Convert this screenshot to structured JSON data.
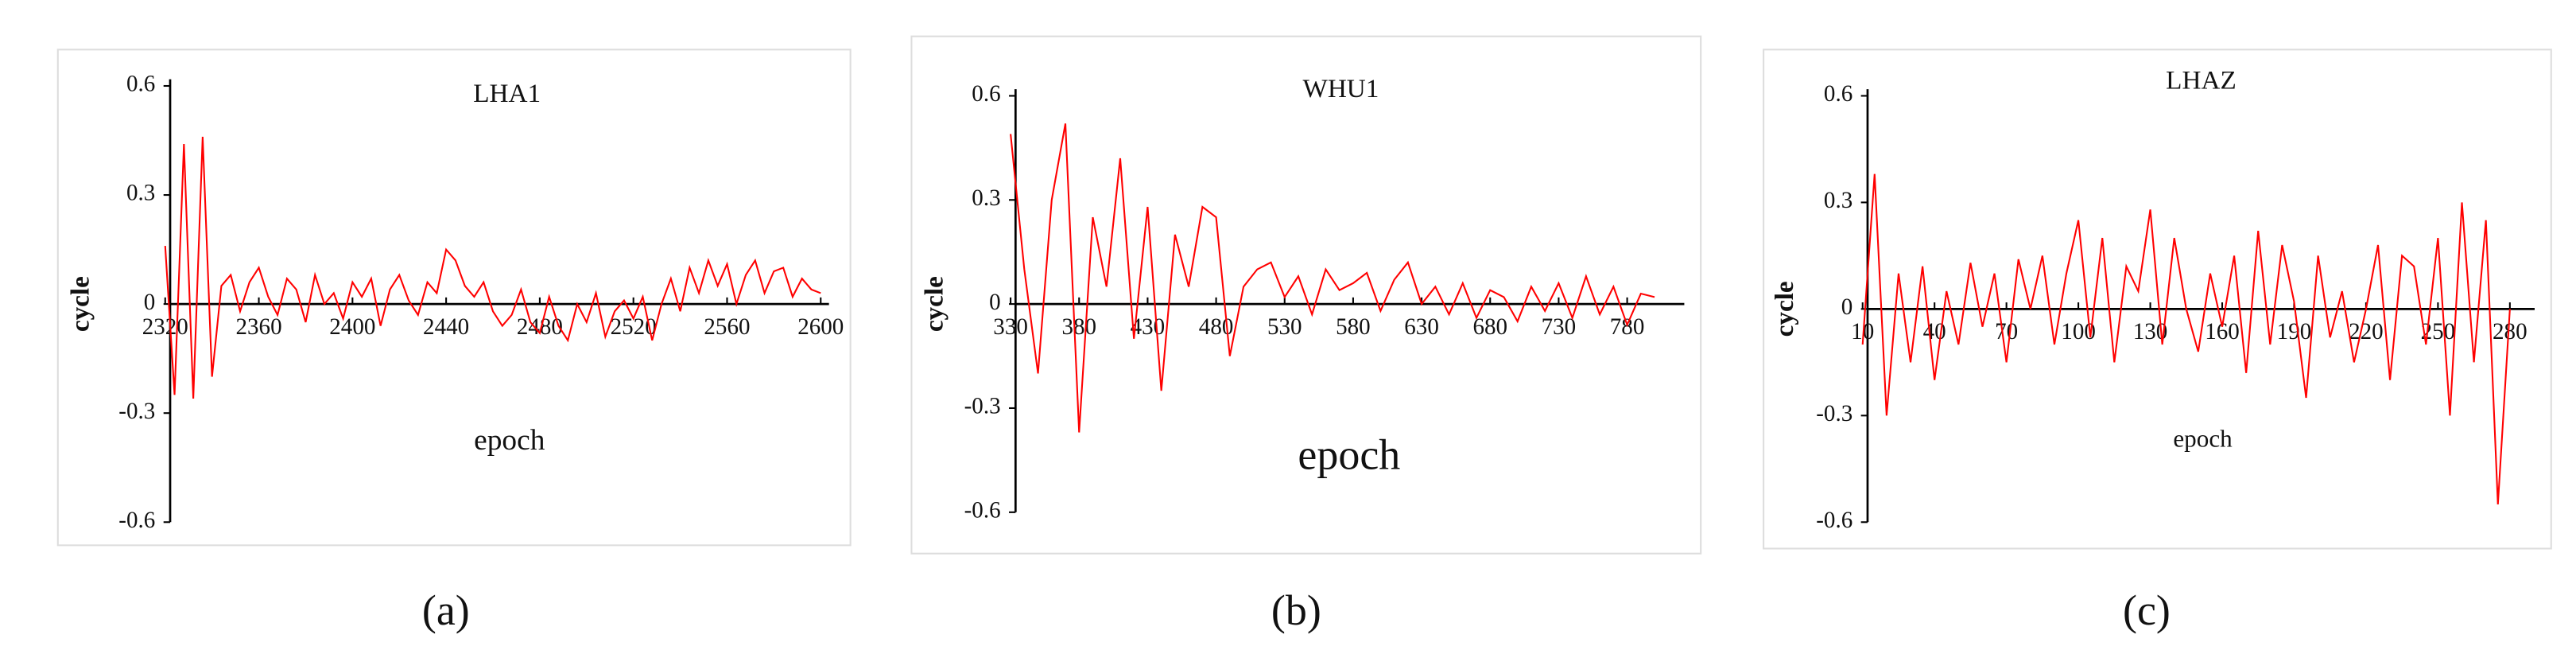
{
  "chart_data": [
    {
      "type": "line",
      "title": "LHA1",
      "x_label": "epoch",
      "y_label": "cycle",
      "caption": "(a)",
      "color": "#ff0000",
      "x": [
        2320,
        2324,
        2328,
        2332,
        2336,
        2340,
        2344,
        2348,
        2352,
        2356,
        2360,
        2364,
        2368,
        2372,
        2376,
        2380,
        2384,
        2388,
        2392,
        2396,
        2400,
        2404,
        2408,
        2412,
        2416,
        2420,
        2424,
        2428,
        2432,
        2436,
        2440,
        2444,
        2448,
        2452,
        2456,
        2460,
        2464,
        2468,
        2472,
        2476,
        2480,
        2484,
        2488,
        2492,
        2496,
        2500,
        2504,
        2508,
        2512,
        2516,
        2520,
        2524,
        2528,
        2532,
        2536,
        2540,
        2544,
        2548,
        2552,
        2556,
        2560,
        2564,
        2568,
        2572,
        2576,
        2580,
        2584,
        2588,
        2592,
        2596,
        2600
      ],
      "values": [
        0.16,
        -0.25,
        0.44,
        -0.26,
        0.46,
        -0.2,
        0.05,
        0.08,
        -0.02,
        0.06,
        0.1,
        0.02,
        -0.03,
        0.07,
        0.04,
        -0.05,
        0.08,
        0.0,
        0.03,
        -0.04,
        0.06,
        0.02,
        0.07,
        -0.06,
        0.04,
        0.08,
        0.01,
        -0.03,
        0.06,
        0.03,
        0.15,
        0.12,
        0.05,
        0.02,
        0.06,
        -0.02,
        -0.06,
        -0.03,
        0.04,
        -0.05,
        -0.08,
        0.02,
        -0.06,
        -0.1,
        0.0,
        -0.05,
        0.03,
        -0.09,
        -0.02,
        0.01,
        -0.04,
        0.02,
        -0.1,
        0.0,
        0.07,
        -0.02,
        0.1,
        0.03,
        0.12,
        0.05,
        0.11,
        0.0,
        0.08,
        0.12,
        0.03,
        0.09,
        0.1,
        0.02,
        0.07,
        0.04,
        0.03
      ],
      "xlim": [
        2320,
        2600
      ],
      "xticks": [
        2320,
        2360,
        2400,
        2440,
        2480,
        2520,
        2560,
        2600
      ],
      "ylim": [
        -0.6,
        0.6
      ],
      "yticks": [
        -0.6,
        -0.3,
        0,
        0.3,
        0.6
      ]
    },
    {
      "type": "line",
      "title": "WHU1",
      "x_label": "epoch",
      "y_label": "cycle",
      "caption": "(b)",
      "color": "#ff0000",
      "x": [
        330,
        340,
        350,
        360,
        370,
        380,
        390,
        400,
        410,
        420,
        430,
        440,
        450,
        460,
        470,
        480,
        490,
        500,
        510,
        520,
        530,
        540,
        550,
        560,
        570,
        580,
        590,
        600,
        610,
        620,
        630,
        640,
        650,
        660,
        670,
        680,
        690,
        700,
        710,
        720,
        730,
        740,
        750,
        760,
        770,
        780,
        790,
        800
      ],
      "values": [
        0.49,
        0.1,
        -0.2,
        0.3,
        0.52,
        -0.37,
        0.25,
        0.05,
        0.42,
        -0.1,
        0.28,
        -0.25,
        0.2,
        0.05,
        0.28,
        0.25,
        -0.15,
        0.05,
        0.1,
        0.12,
        0.02,
        0.08,
        -0.03,
        0.1,
        0.04,
        0.06,
        0.09,
        -0.02,
        0.07,
        0.12,
        0.0,
        0.05,
        -0.03,
        0.06,
        -0.04,
        0.04,
        0.02,
        -0.05,
        0.05,
        -0.02,
        0.06,
        -0.04,
        0.08,
        -0.03,
        0.05,
        -0.06,
        0.03,
        0.02
      ],
      "xlim": [
        330,
        800
      ],
      "xticks": [
        330,
        380,
        430,
        480,
        530,
        580,
        630,
        680,
        730,
        780
      ],
      "ylim": [
        -0.6,
        0.6
      ],
      "yticks": [
        -0.6,
        -0.3,
        0,
        0.3,
        0.6
      ]
    },
    {
      "type": "line",
      "title": "LHAZ",
      "x_label": "epoch",
      "y_label": "cycle",
      "caption": "(c)",
      "color": "#ff0000",
      "x": [
        10,
        15,
        20,
        25,
        30,
        35,
        40,
        45,
        50,
        55,
        60,
        65,
        70,
        75,
        80,
        85,
        90,
        95,
        100,
        105,
        110,
        115,
        120,
        125,
        130,
        135,
        140,
        145,
        150,
        155,
        160,
        165,
        170,
        175,
        180,
        185,
        190,
        195,
        200,
        205,
        210,
        215,
        220,
        225,
        230,
        235,
        240,
        245,
        250,
        255,
        260,
        265,
        270,
        275,
        280
      ],
      "values": [
        -0.1,
        0.38,
        -0.3,
        0.1,
        -0.15,
        0.12,
        -0.2,
        0.05,
        -0.1,
        0.13,
        -0.05,
        0.1,
        -0.15,
        0.14,
        0.0,
        0.15,
        -0.1,
        0.1,
        0.25,
        -0.08,
        0.2,
        -0.15,
        0.12,
        0.05,
        0.28,
        -0.1,
        0.2,
        0.0,
        -0.12,
        0.1,
        -0.05,
        0.15,
        -0.18,
        0.22,
        -0.1,
        0.18,
        0.02,
        -0.25,
        0.15,
        -0.08,
        0.05,
        -0.15,
        0.0,
        0.18,
        -0.2,
        0.15,
        0.12,
        -0.1,
        0.2,
        -0.3,
        0.3,
        -0.15,
        0.25,
        -0.55,
        0.0
      ],
      "xlim": [
        10,
        280
      ],
      "xticks": [
        10,
        40,
        70,
        100,
        130,
        160,
        190,
        220,
        250,
        280
      ],
      "ylim": [
        -0.6,
        0.6
      ],
      "yticks": [
        -0.6,
        -0.3,
        0,
        0.3,
        0.6
      ]
    }
  ]
}
